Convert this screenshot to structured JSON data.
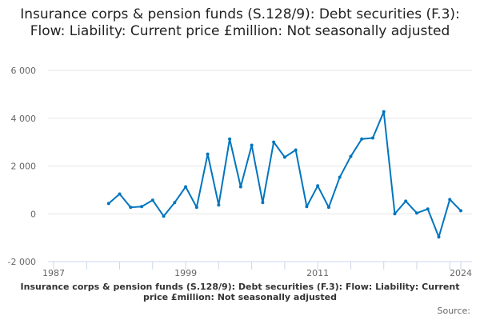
{
  "chart_data": {
    "type": "line",
    "title": "Insurance corps & pension funds (S.128/9): Debt securities (F.3): Flow: Liability: Current price £million: Not seasonally adjusted",
    "xlabel": "",
    "ylabel": "",
    "xlim": [
      1987,
      2024
    ],
    "ylim": [
      -2000,
      6000
    ],
    "x_ticks": [
      "1987",
      "1999",
      "2011",
      "2024"
    ],
    "y_ticks": [
      "6 000",
      "4 000",
      "2 000",
      "0",
      "-2 000"
    ],
    "y_tick_values": [
      6000,
      4000,
      2000,
      0,
      -2000
    ],
    "grid": true,
    "color": "#0075be",
    "series": [
      {
        "name": "Insurance corps & pension funds (S.128/9): Debt securities (F.3): Flow: Liability: Current price £million: Not seasonally adjusted",
        "x": [
          1992,
          1993,
          1994,
          1995,
          1996,
          1997,
          1998,
          1999,
          2000,
          2001,
          2002,
          2003,
          2004,
          2005,
          2006,
          2007,
          2008,
          2009,
          2010,
          2011,
          2012,
          2013,
          2014,
          2015,
          2016,
          2017,
          2018,
          2019,
          2020,
          2021,
          2022,
          2023,
          2024
        ],
        "values": [
          430,
          830,
          270,
          300,
          570,
          -100,
          470,
          1130,
          270,
          2500,
          370,
          3130,
          1130,
          2870,
          470,
          3000,
          2370,
          2670,
          300,
          1170,
          270,
          1530,
          2400,
          3130,
          3170,
          4270,
          0,
          530,
          30,
          200,
          -970,
          600,
          130
        ]
      }
    ],
    "source_label": "Source:"
  }
}
